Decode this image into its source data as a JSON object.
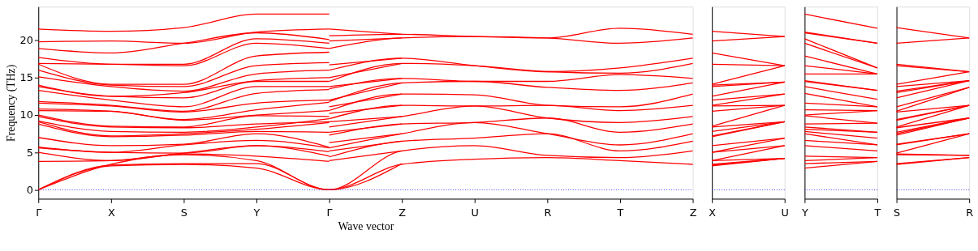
{
  "chart_data": [
    {
      "type": "line",
      "xlabel": "Wave vector",
      "ylabel": "Frequency (THz)",
      "ylim": [
        -1.2,
        24.5
      ],
      "categories": [
        "Γ",
        "X",
        "S",
        "Y",
        "Γ",
        "Z",
        "U",
        "R",
        "T",
        "Z"
      ],
      "yticks": [
        0,
        5,
        10,
        15,
        20
      ],
      "ref_lines": [
        {
          "axis": "y",
          "value": 0,
          "color": "#0000ff",
          "line_style": "dotted"
        }
      ],
      "series": [
        {
          "color": "#ff0000",
          "values": [
            0,
            3.2,
            3.4,
            2.9,
            0,
            3.4,
            4.1,
            4.3,
            3.9,
            3.4
          ]
        },
        {
          "color": "#ff0000",
          "values": [
            0,
            3.3,
            3.5,
            3.5,
            0,
            5.2,
            5.9,
            4.6,
            4.3,
            5.2
          ]
        },
        {
          "color": "#ff0000",
          "values": [
            0,
            3.4,
            4.7,
            3.9,
            0,
            3.5,
            null,
            null,
            null,
            null
          ]
        },
        {
          "color": "#ff0000",
          "values": [
            3.8,
            3.9,
            4.8,
            4.5,
            3.8,
            null,
            null,
            null,
            null,
            null
          ]
        },
        {
          "color": "#ff0000",
          "values": [
            5.0,
            3.9,
            4.9,
            5.9,
            4.5,
            null,
            null,
            null,
            null,
            null
          ]
        },
        {
          "color": "#ff0000",
          "values": [
            5.6,
            5.0,
            4.9,
            5.9,
            5.1,
            null,
            null,
            null,
            null,
            null
          ]
        },
        {
          "color": "#ff0000",
          "values": [
            5.7,
            5.0,
            6.0,
            6.6,
            5.6,
            null,
            null,
            null,
            null,
            null
          ]
        },
        {
          "color": "#ff0000",
          "values": [
            7.0,
            5.9,
            6.1,
            7.5,
            5.7,
            null,
            null,
            null,
            null,
            null
          ]
        },
        {
          "color": "#ff0000",
          "values": [
            8.8,
            7.1,
            7.3,
            7.8,
            7.7,
            null,
            null,
            null,
            null,
            null
          ]
        },
        {
          "color": "#ff0000",
          "values": [
            9.1,
            7.2,
            7.5,
            8.1,
            9.0,
            null,
            null,
            null,
            null,
            null
          ]
        },
        {
          "color": "#ff0000",
          "values": [
            9.2,
            7.8,
            7.7,
            8.4,
            9.5,
            null,
            null,
            null,
            null,
            null
          ]
        },
        {
          "color": "#ff0000",
          "values": [
            9.8,
            8.4,
            8.3,
            8.8,
            9.1,
            null,
            null,
            null,
            null,
            null
          ]
        },
        {
          "color": "#ff0000",
          "values": [
            10.0,
            8.5,
            8.4,
            9.9,
            9.8,
            null,
            null,
            null,
            null,
            null
          ]
        },
        {
          "color": "#ff0000",
          "values": [
            10.6,
            10.5,
            9.3,
            10.0,
            10.6,
            null,
            null,
            null,
            null,
            null
          ]
        },
        {
          "color": "#ff0000",
          "values": [
            10.8,
            10.5,
            9.4,
            10.7,
            11.7,
            null,
            null,
            null,
            null,
            null
          ]
        },
        {
          "color": "#ff0000",
          "values": [
            11.6,
            11.2,
            10.4,
            11.6,
            12.0,
            null,
            null,
            null,
            null,
            null
          ]
        },
        {
          "color": "#ff0000",
          "values": [
            11.8,
            11.3,
            10.5,
            12.9,
            13.4,
            null,
            null,
            null,
            null,
            null
          ]
        },
        {
          "color": "#ff0000",
          "values": [
            13.3,
            12.0,
            11.1,
            13.8,
            13.8,
            null,
            null,
            null,
            null,
            null
          ]
        },
        {
          "color": "#ff0000",
          "values": [
            13.8,
            12.5,
            12.3,
            14.5,
            14.5,
            null,
            null,
            null,
            null,
            null
          ]
        },
        {
          "color": "#ff0000",
          "values": [
            14.0,
            12.5,
            13.0,
            14.6,
            15.0,
            null,
            null,
            null,
            null,
            null
          ]
        },
        {
          "color": "#ff0000",
          "values": [
            15.1,
            13.8,
            13.2,
            15.5,
            16.0,
            null,
            null,
            null,
            null,
            null
          ]
        },
        {
          "color": "#ff0000",
          "values": [
            16.0,
            14.0,
            13.8,
            16.6,
            17.0,
            null,
            null,
            null,
            null,
            null
          ]
        },
        {
          "color": "#ff0000",
          "values": [
            16.8,
            14.1,
            14.1,
            17.9,
            18.4,
            null,
            null,
            null,
            null,
            null
          ]
        },
        {
          "color": "#ff0000",
          "values": [
            16.9,
            16.8,
            16.6,
            19.6,
            18.9,
            null,
            null,
            null,
            null,
            null
          ]
        },
        {
          "color": "#ff0000",
          "values": [
            17.7,
            16.8,
            16.8,
            20.2,
            19.6,
            null,
            null,
            null,
            null,
            null
          ]
        },
        {
          "color": "#ff0000",
          "values": [
            18.9,
            18.3,
            19.6,
            21.0,
            20.1,
            null,
            null,
            null,
            null,
            null
          ]
        },
        {
          "color": "#ff0000",
          "values": [
            19.8,
            19.9,
            19.6,
            21.1,
            21.5,
            null,
            null,
            null,
            null,
            null
          ]
        },
        {
          "color": "#ff0000",
          "values": [
            21.5,
            21.2,
            21.7,
            23.5,
            23.5,
            null,
            null,
            null,
            null,
            null
          ]
        },
        {
          "color": "#ff0000",
          "values": [
            null,
            null,
            null,
            null,
            3.9,
            5.2,
            null,
            null,
            null,
            null
          ]
        },
        {
          "color": "#ff0000",
          "values": [
            null,
            null,
            null,
            null,
            4.4,
            6.5,
            6.9,
            7.5,
            5.2,
            6.5
          ]
        },
        {
          "color": "#ff0000",
          "values": [
            null,
            null,
            null,
            null,
            5.2,
            6.5,
            null,
            null,
            null,
            null
          ]
        },
        {
          "color": "#ff0000",
          "values": [
            null,
            null,
            null,
            null,
            5.6,
            7.5,
            9.0,
            7.5,
            6.0,
            7.5
          ]
        },
        {
          "color": "#ff0000",
          "values": [
            null,
            null,
            null,
            null,
            6.3,
            7.5,
            null,
            null,
            null,
            null
          ]
        },
        {
          "color": "#ff0000",
          "values": [
            null,
            null,
            null,
            null,
            7.3,
            8.8,
            9.0,
            9.6,
            7.7,
            8.8
          ]
        },
        {
          "color": "#ff0000",
          "values": [
            null,
            null,
            null,
            null,
            7.7,
            8.8,
            null,
            null,
            null,
            null
          ]
        },
        {
          "color": "#ff0000",
          "values": [
            null,
            null,
            null,
            null,
            8.4,
            9.8,
            11.2,
            9.6,
            9.0,
            9.8
          ]
        },
        {
          "color": "#ff0000",
          "values": [
            null,
            null,
            null,
            null,
            9.1,
            9.8,
            null,
            null,
            null,
            null
          ]
        },
        {
          "color": "#ff0000",
          "values": [
            null,
            null,
            null,
            null,
            9.5,
            11.3,
            11.2,
            11.3,
            10.6,
            11.3
          ]
        },
        {
          "color": "#ff0000",
          "values": [
            null,
            null,
            null,
            null,
            10.2,
            11.3,
            null,
            null,
            null,
            null
          ]
        },
        {
          "color": "#ff0000",
          "values": [
            null,
            null,
            null,
            null,
            10.6,
            12.8,
            12.7,
            11.3,
            11.1,
            12.8
          ]
        },
        {
          "color": "#ff0000",
          "values": [
            null,
            null,
            null,
            null,
            11.1,
            12.8,
            null,
            null,
            null,
            null
          ]
        },
        {
          "color": "#ff0000",
          "values": [
            null,
            null,
            null,
            null,
            11.8,
            14.3,
            14.5,
            13.7,
            13.3,
            14.3
          ]
        },
        {
          "color": "#ff0000",
          "values": [
            null,
            null,
            null,
            null,
            12.0,
            14.3,
            null,
            null,
            null,
            null
          ]
        },
        {
          "color": "#ff0000",
          "values": [
            null,
            null,
            null,
            null,
            13.5,
            14.9,
            14.5,
            14.5,
            15.4,
            14.9
          ]
        },
        {
          "color": "#ff0000",
          "values": [
            null,
            null,
            null,
            null,
            13.8,
            14.9,
            null,
            null,
            null,
            null
          ]
        },
        {
          "color": "#ff0000",
          "values": [
            null,
            null,
            null,
            null,
            14.5,
            16.9,
            16.6,
            15.8,
            15.6,
            16.9
          ]
        },
        {
          "color": "#ff0000",
          "values": [
            null,
            null,
            null,
            null,
            15.0,
            16.9,
            null,
            null,
            null,
            null
          ]
        },
        {
          "color": "#ff0000",
          "values": [
            null,
            null,
            null,
            null,
            16.0,
            17.6,
            16.6,
            15.8,
            16.3,
            17.6
          ]
        },
        {
          "color": "#ff0000",
          "values": [
            null,
            null,
            null,
            null,
            16.7,
            17.6,
            null,
            null,
            null,
            null
          ]
        },
        {
          "color": "#ff0000",
          "values": [
            null,
            null,
            null,
            null,
            18.9,
            20.3,
            20.5,
            20.3,
            19.6,
            20.3
          ]
        },
        {
          "color": "#ff0000",
          "values": [
            null,
            null,
            null,
            null,
            19.9,
            20.3,
            null,
            null,
            null,
            null
          ]
        },
        {
          "color": "#ff0000",
          "values": [
            null,
            null,
            null,
            null,
            20.6,
            20.8,
            20.5,
            20.3,
            21.6,
            20.8
          ]
        },
        {
          "color": "#ff0000",
          "values": [
            null,
            null,
            null,
            null,
            21.5,
            20.8,
            null,
            null,
            null,
            null
          ]
        }
      ]
    },
    {
      "type": "line",
      "tick_labels": "x",
      "categories": [
        "X",
        "U"
      ],
      "ylim": [
        -1.2,
        24.5
      ],
      "yticks": [
        0,
        5,
        10,
        15,
        20
      ],
      "ref_lines": [
        {
          "axis": "y",
          "value": 0,
          "color": "#0000ff",
          "line_style": "dotted"
        }
      ],
      "series": [
        {
          "color": "#ff0000",
          "values": [
            3.2,
            4.2
          ]
        },
        {
          "color": "#ff0000",
          "values": [
            3.3,
            4.2
          ]
        },
        {
          "color": "#ff0000",
          "values": [
            3.4,
            4.2
          ]
        },
        {
          "color": "#ff0000",
          "values": [
            3.9,
            4.2
          ]
        },
        {
          "color": "#ff0000",
          "values": [
            3.9,
            5.9
          ]
        },
        {
          "color": "#ff0000",
          "values": [
            5.0,
            5.9
          ]
        },
        {
          "color": "#ff0000",
          "values": [
            5.0,
            6.9
          ]
        },
        {
          "color": "#ff0000",
          "values": [
            5.9,
            6.9
          ]
        },
        {
          "color": "#ff0000",
          "values": [
            7.1,
            9.1
          ]
        },
        {
          "color": "#ff0000",
          "values": [
            7.2,
            9.1
          ]
        },
        {
          "color": "#ff0000",
          "values": [
            7.8,
            9.1
          ]
        },
        {
          "color": "#ff0000",
          "values": [
            8.4,
            9.1
          ]
        },
        {
          "color": "#ff0000",
          "values": [
            8.5,
            11.3
          ]
        },
        {
          "color": "#ff0000",
          "values": [
            10.5,
            11.3
          ]
        },
        {
          "color": "#ff0000",
          "values": [
            11.2,
            11.3
          ]
        },
        {
          "color": "#ff0000",
          "values": [
            11.3,
            12.8
          ]
        },
        {
          "color": "#ff0000",
          "values": [
            12.0,
            12.8
          ]
        },
        {
          "color": "#ff0000",
          "values": [
            12.5,
            14.4
          ]
        },
        {
          "color": "#ff0000",
          "values": [
            13.8,
            14.4
          ]
        },
        {
          "color": "#ff0000",
          "values": [
            14.0,
            14.4
          ]
        },
        {
          "color": "#ff0000",
          "values": [
            14.1,
            16.6
          ]
        },
        {
          "color": "#ff0000",
          "values": [
            16.8,
            16.6
          ]
        },
        {
          "color": "#ff0000",
          "values": [
            18.3,
            16.6
          ]
        },
        {
          "color": "#ff0000",
          "values": [
            19.9,
            20.5
          ]
        },
        {
          "color": "#ff0000",
          "values": [
            21.2,
            20.5
          ]
        }
      ]
    },
    {
      "type": "line",
      "tick_labels": "x",
      "categories": [
        "Y",
        "T"
      ],
      "ylim": [
        -1.2,
        24.5
      ],
      "yticks": [
        0,
        5,
        10,
        15,
        20
      ],
      "ref_lines": [
        {
          "axis": "y",
          "value": 0,
          "color": "#0000ff",
          "line_style": "dotted"
        }
      ],
      "series": [
        {
          "color": "#ff0000",
          "values": [
            2.9,
            3.8
          ]
        },
        {
          "color": "#ff0000",
          "values": [
            3.5,
            3.8
          ]
        },
        {
          "color": "#ff0000",
          "values": [
            3.9,
            4.3
          ]
        },
        {
          "color": "#ff0000",
          "values": [
            4.5,
            4.3
          ]
        },
        {
          "color": "#ff0000",
          "values": [
            5.9,
            5.2
          ]
        },
        {
          "color": "#ff0000",
          "values": [
            6.6,
            6.0
          ]
        },
        {
          "color": "#ff0000",
          "values": [
            7.5,
            6.0
          ]
        },
        {
          "color": "#ff0000",
          "values": [
            7.8,
            6.9
          ]
        },
        {
          "color": "#ff0000",
          "values": [
            8.1,
            7.7
          ]
        },
        {
          "color": "#ff0000",
          "values": [
            8.4,
            7.7
          ]
        },
        {
          "color": "#ff0000",
          "values": [
            8.8,
            8.9
          ]
        },
        {
          "color": "#ff0000",
          "values": [
            9.9,
            8.9
          ]
        },
        {
          "color": "#ff0000",
          "values": [
            10.0,
            10.6
          ]
        },
        {
          "color": "#ff0000",
          "values": [
            10.7,
            10.6
          ]
        },
        {
          "color": "#ff0000",
          "values": [
            11.6,
            11.1
          ]
        },
        {
          "color": "#ff0000",
          "values": [
            12.9,
            11.1
          ]
        },
        {
          "color": "#ff0000",
          "values": [
            13.8,
            12.1
          ]
        },
        {
          "color": "#ff0000",
          "values": [
            14.5,
            13.3
          ]
        },
        {
          "color": "#ff0000",
          "values": [
            14.6,
            13.3
          ]
        },
        {
          "color": "#ff0000",
          "values": [
            15.5,
            15.5
          ]
        },
        {
          "color": "#ff0000",
          "values": [
            16.6,
            15.5
          ]
        },
        {
          "color": "#ff0000",
          "values": [
            17.9,
            15.5
          ]
        },
        {
          "color": "#ff0000",
          "values": [
            19.6,
            16.3
          ]
        },
        {
          "color": "#ff0000",
          "values": [
            20.2,
            16.3
          ]
        },
        {
          "color": "#ff0000",
          "values": [
            21.0,
            19.6
          ]
        },
        {
          "color": "#ff0000",
          "values": [
            21.1,
            19.6
          ]
        },
        {
          "color": "#ff0000",
          "values": [
            23.5,
            21.6
          ]
        }
      ]
    },
    {
      "type": "line",
      "tick_labels": "x",
      "categories": [
        "S",
        "R"
      ],
      "ylim": [
        -1.2,
        24.5
      ],
      "yticks": [
        0,
        5,
        10,
        15,
        20
      ],
      "ref_lines": [
        {
          "axis": "y",
          "value": 0,
          "color": "#0000ff",
          "line_style": "dotted"
        }
      ],
      "series": [
        {
          "color": "#ff0000",
          "values": [
            3.4,
            4.3
          ]
        },
        {
          "color": "#ff0000",
          "values": [
            3.5,
            4.3
          ]
        },
        {
          "color": "#ff0000",
          "values": [
            4.7,
            4.6
          ]
        },
        {
          "color": "#ff0000",
          "values": [
            4.8,
            4.6
          ]
        },
        {
          "color": "#ff0000",
          "values": [
            4.9,
            7.5
          ]
        },
        {
          "color": "#ff0000",
          "values": [
            6.0,
            7.5
          ]
        },
        {
          "color": "#ff0000",
          "values": [
            6.1,
            7.5
          ]
        },
        {
          "color": "#ff0000",
          "values": [
            7.3,
            9.6
          ]
        },
        {
          "color": "#ff0000",
          "values": [
            7.5,
            9.6
          ]
        },
        {
          "color": "#ff0000",
          "values": [
            7.7,
            9.6
          ]
        },
        {
          "color": "#ff0000",
          "values": [
            8.3,
            9.6
          ]
        },
        {
          "color": "#ff0000",
          "values": [
            8.4,
            11.3
          ]
        },
        {
          "color": "#ff0000",
          "values": [
            9.3,
            11.3
          ]
        },
        {
          "color": "#ff0000",
          "values": [
            9.4,
            11.3
          ]
        },
        {
          "color": "#ff0000",
          "values": [
            10.4,
            11.3
          ]
        },
        {
          "color": "#ff0000",
          "values": [
            10.5,
            13.7
          ]
        },
        {
          "color": "#ff0000",
          "values": [
            11.1,
            13.7
          ]
        },
        {
          "color": "#ff0000",
          "values": [
            12.3,
            14.6
          ]
        },
        {
          "color": "#ff0000",
          "values": [
            13.0,
            14.6
          ]
        },
        {
          "color": "#ff0000",
          "values": [
            13.2,
            14.6
          ]
        },
        {
          "color": "#ff0000",
          "values": [
            13.8,
            14.6
          ]
        },
        {
          "color": "#ff0000",
          "values": [
            14.1,
            15.8
          ]
        },
        {
          "color": "#ff0000",
          "values": [
            16.6,
            15.8
          ]
        },
        {
          "color": "#ff0000",
          "values": [
            16.8,
            15.8
          ]
        },
        {
          "color": "#ff0000",
          "values": [
            19.6,
            20.3
          ]
        },
        {
          "color": "#ff0000",
          "values": [
            21.7,
            20.3
          ]
        }
      ]
    }
  ]
}
